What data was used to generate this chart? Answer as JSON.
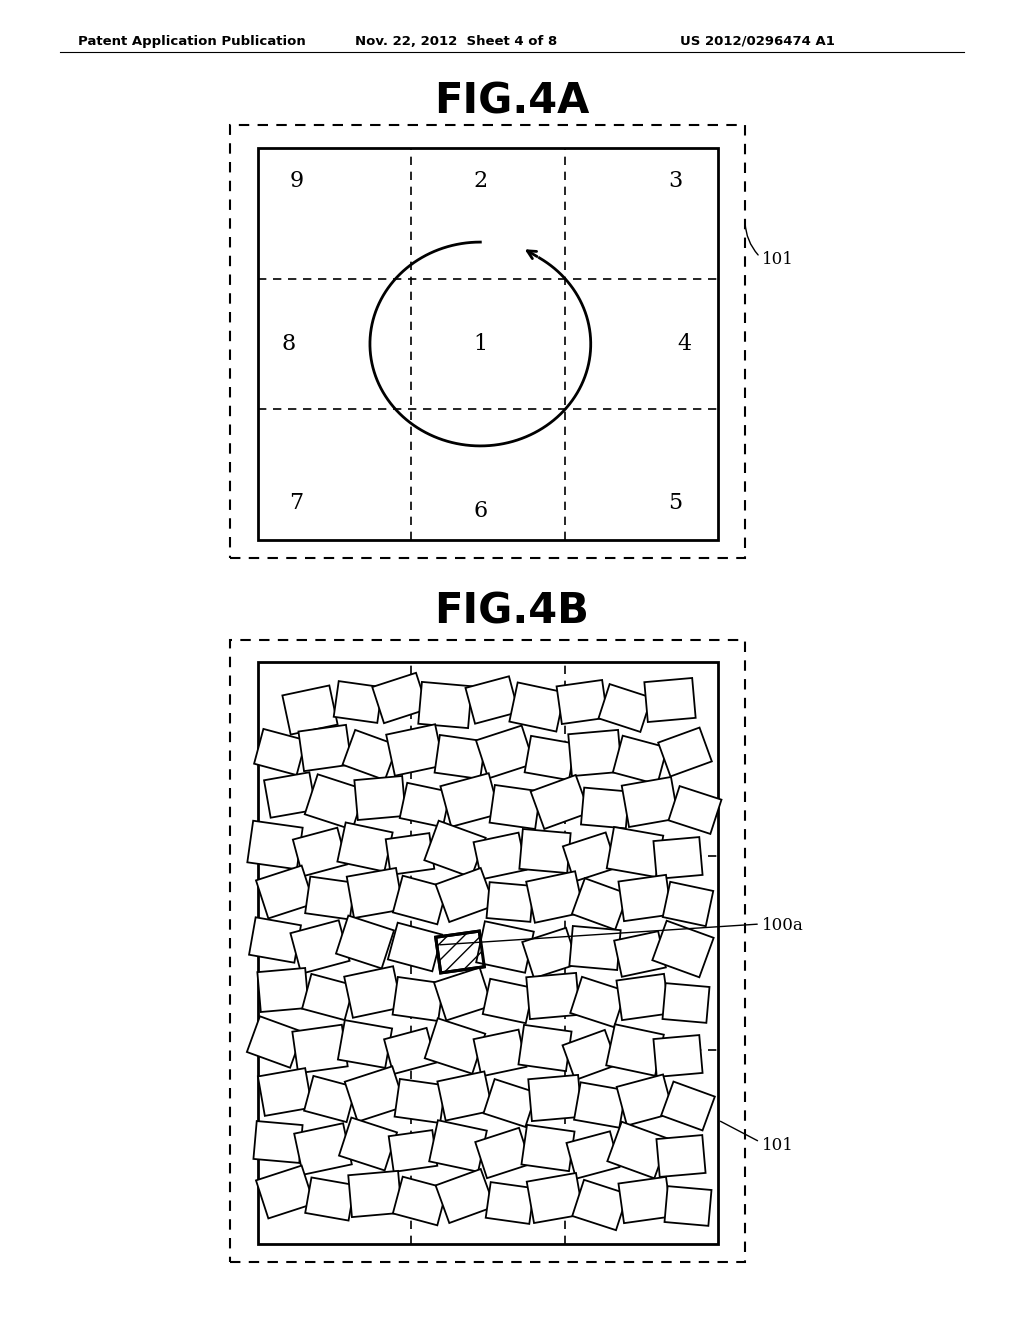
{
  "background_color": "#ffffff",
  "header_text": "Patent Application Publication",
  "header_date": "Nov. 22, 2012  Sheet 4 of 8",
  "header_patent": "US 2012/0296474 A1",
  "fig4a_title": "FIG.4A",
  "fig4b_title": "FIG.4B",
  "label_101_4a": "101",
  "label_101_4b": "101",
  "label_100a": "100a"
}
